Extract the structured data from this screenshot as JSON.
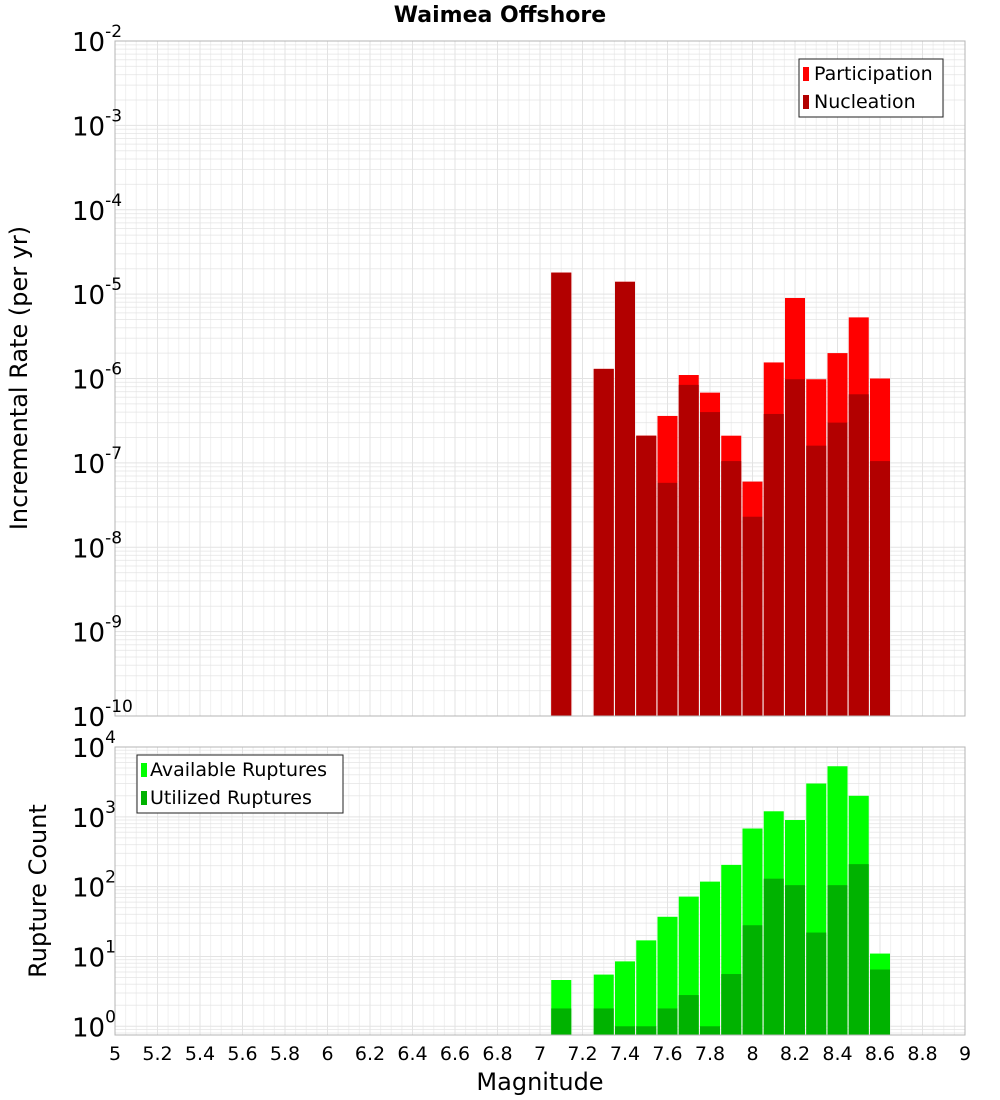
{
  "chart_data": [
    {
      "type": "bar",
      "title": "Waimea Offshore",
      "xlabel": "",
      "ylabel": "Incremental Rate (per yr)",
      "yscale": "log",
      "ylim": [
        1e-10,
        0.01
      ],
      "xlim": [
        5,
        9
      ],
      "grid": true,
      "legend_position": "top-right",
      "x": [
        7.1,
        7.3,
        7.4,
        7.5,
        7.6,
        7.7,
        7.8,
        7.9,
        8.0,
        8.1,
        8.2,
        8.3,
        8.4,
        8.5,
        8.6
      ],
      "series": [
        {
          "name": "Participation",
          "color": "#ff0000",
          "values": [
            1.8e-05,
            1.3e-06,
            1.4e-05,
            2.1e-07,
            3.6e-07,
            1.1e-06,
            6.8e-07,
            2.1e-07,
            6e-08,
            1.55e-06,
            9e-06,
            9.8e-07,
            2e-06,
            5.3e-06,
            1e-06
          ]
        },
        {
          "name": "Nucleation",
          "color": "#b20000",
          "values": [
            1.8e-05,
            1.3e-06,
            1.4e-05,
            2.1e-07,
            5.8e-08,
            8.4e-07,
            4e-07,
            1.05e-07,
            2.3e-08,
            3.8e-07,
            9.8e-07,
            1.6e-07,
            3e-07,
            6.5e-07,
            1.05e-07
          ]
        }
      ]
    },
    {
      "type": "bar",
      "title": "",
      "xlabel": "Magnitude",
      "ylabel": "Rupture Count",
      "yscale": "log",
      "ylim": [
        0.75,
        10000
      ],
      "xlim": [
        5,
        9
      ],
      "grid": true,
      "legend_position": "top-left",
      "x": [
        7.1,
        7.3,
        7.4,
        7.5,
        7.6,
        7.7,
        7.8,
        7.9,
        8.0,
        8.1,
        8.2,
        8.3,
        8.4,
        8.5,
        8.6
      ],
      "series": [
        {
          "name": "Available Ruptures",
          "color": "#00ff00",
          "values": [
            4.6,
            5.5,
            8.5,
            17,
            37,
            72,
            118,
            205,
            680,
            1200,
            900,
            3000,
            5300,
            2000,
            11
          ]
        },
        {
          "name": "Utilized Ruptures",
          "color": "#00b200",
          "values": [
            1.8,
            1.8,
            1,
            1,
            1.8,
            2.8,
            1,
            5.6,
            28,
            130,
            105,
            22,
            105,
            210,
            6.5
          ]
        }
      ]
    }
  ],
  "x_tick_labels": [
    "5",
    "5.2",
    "5.4",
    "5.6",
    "5.8",
    "6",
    "6.2",
    "6.4",
    "6.6",
    "6.8",
    "7",
    "7.2",
    "7.4",
    "7.6",
    "7.8",
    "8",
    "8.2",
    "8.4",
    "8.6",
    "8.8",
    "9"
  ],
  "top_y_ticks": [
    {
      "base": "10",
      "exp": "-2",
      "value": 0.01
    },
    {
      "base": "10",
      "exp": "-3",
      "value": 0.001
    },
    {
      "base": "10",
      "exp": "-4",
      "value": 0.0001
    },
    {
      "base": "10",
      "exp": "-5",
      "value": 1e-05
    },
    {
      "base": "10",
      "exp": "-6",
      "value": 1e-06
    },
    {
      "base": "10",
      "exp": "-7",
      "value": 1e-07
    },
    {
      "base": "10",
      "exp": "-8",
      "value": 1e-08
    },
    {
      "base": "10",
      "exp": "-9",
      "value": 1e-09
    },
    {
      "base": "10",
      "exp": "-10",
      "value": 1e-10
    }
  ],
  "bottom_y_ticks": [
    {
      "base": "10",
      "exp": "0",
      "value": 1
    },
    {
      "base": "10",
      "exp": "1",
      "value": 10
    },
    {
      "base": "10",
      "exp": "2",
      "value": 100
    },
    {
      "base": "10",
      "exp": "3",
      "value": 1000
    },
    {
      "base": "10",
      "exp": "4",
      "value": 10000
    }
  ]
}
